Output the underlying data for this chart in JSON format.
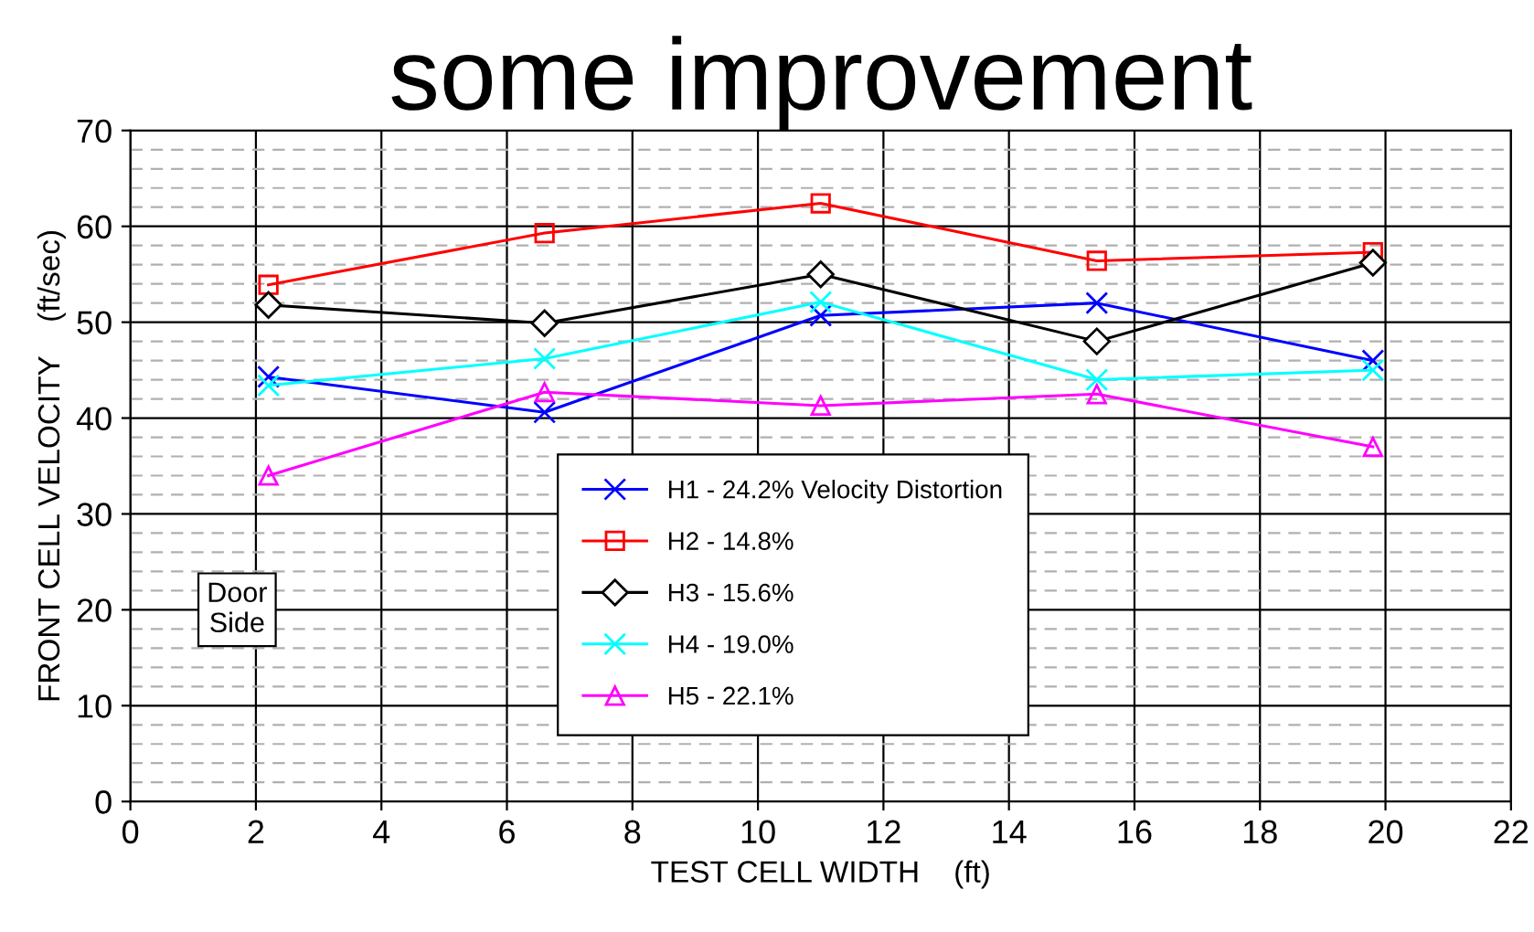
{
  "chart_data": {
    "type": "line",
    "title": "some improvement",
    "xlabel": "TEST CELL WIDTH    (ft)",
    "ylabel": "FRONT CELL VELOCITY    (ft/sec)",
    "x": [
      2.2,
      6.6,
      11.0,
      15.4,
      19.8
    ],
    "series": [
      {
        "name": "H1 - 24.2% Velocity Distortion",
        "color": "#0000ff",
        "marker": "cross",
        "values": [
          44.3,
          40.6,
          50.7,
          52,
          46
        ]
      },
      {
        "name": "H2 - 14.8%",
        "color": "#ff0000",
        "marker": "square",
        "values": [
          53.9,
          59.3,
          62.4,
          56.4,
          57.3
        ]
      },
      {
        "name": "H3 - 15.6%",
        "color": "#000000",
        "marker": "diamond",
        "values": [
          51.8,
          49.9,
          55,
          48,
          56.2
        ]
      },
      {
        "name": "H4 - 19.0%",
        "color": "#00ffff",
        "marker": "cross",
        "values": [
          43.4,
          46.2,
          52.1,
          44,
          45
        ]
      },
      {
        "name": "H5 - 22.1%",
        "color": "#ff00ff",
        "marker": "triangle",
        "values": [
          34,
          42.7,
          41.3,
          42.5,
          37
        ]
      }
    ],
    "annotations": [
      {
        "text": "Door\nSide",
        "x": 1.7,
        "y": 20
      }
    ],
    "xlim": [
      0,
      22
    ],
    "xticks": [
      0,
      2,
      4,
      6,
      8,
      10,
      12,
      14,
      16,
      18,
      20,
      22
    ],
    "ylim": [
      0,
      70
    ],
    "yticks": [
      0,
      10,
      20,
      30,
      40,
      50,
      60,
      70
    ],
    "grid": true,
    "legend": "bottom",
    "line_style": "solid"
  }
}
